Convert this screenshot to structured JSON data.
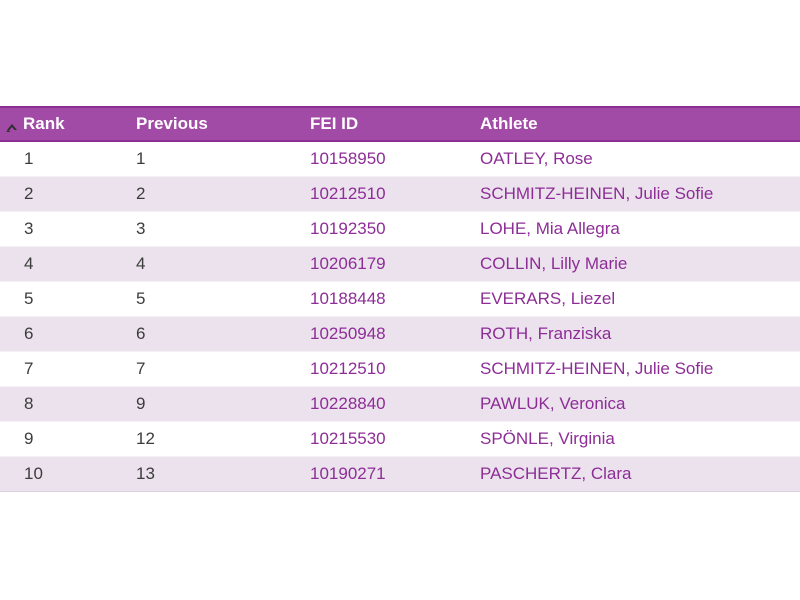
{
  "table": {
    "sorted_column": "Rank",
    "sort_direction": "ascending",
    "columns": [
      {
        "key": "rank",
        "label": "Rank"
      },
      {
        "key": "previous",
        "label": "Previous"
      },
      {
        "key": "fei_id",
        "label": "FEI ID"
      },
      {
        "key": "athlete",
        "label": "Athlete"
      }
    ],
    "rows": [
      {
        "rank": "1",
        "previous": "1",
        "fei_id": "10158950",
        "athlete": "OATLEY, Rose"
      },
      {
        "rank": "2",
        "previous": "2",
        "fei_id": "10212510",
        "athlete": "SCHMITZ-HEINEN, Julie Sofie"
      },
      {
        "rank": "3",
        "previous": "3",
        "fei_id": "10192350",
        "athlete": "LOHE, Mia Allegra"
      },
      {
        "rank": "4",
        "previous": "4",
        "fei_id": "10206179",
        "athlete": "COLLIN, Lilly Marie"
      },
      {
        "rank": "5",
        "previous": "5",
        "fei_id": "10188448",
        "athlete": "EVERARS, Liezel"
      },
      {
        "rank": "6",
        "previous": "6",
        "fei_id": "10250948",
        "athlete": "ROTH, Franziska"
      },
      {
        "rank": "7",
        "previous": "7",
        "fei_id": "10212510",
        "athlete": "SCHMITZ-HEINEN, Julie Sofie"
      },
      {
        "rank": "8",
        "previous": "9",
        "fei_id": "10228840",
        "athlete": "PAWLUK, Veronica"
      },
      {
        "rank": "9",
        "previous": "12",
        "fei_id": "10215530",
        "athlete": "SPÖNLE, Virginia"
      },
      {
        "rank": "10",
        "previous": "13",
        "fei_id": "10190271",
        "athlete": "PASCHERTZ, Clara"
      }
    ]
  },
  "icons": {
    "sort_ascending": "chevron-up"
  },
  "colors": {
    "header_background": "#a24ba6",
    "header_border": "#8b3091",
    "header_text": "#ffffff",
    "row_alt_background": "#ece2ee",
    "row_background": "#ffffff",
    "number_text": "#3c3c3c",
    "link_text": "#8d2d96",
    "sort_caret": "#2e2e2e"
  }
}
